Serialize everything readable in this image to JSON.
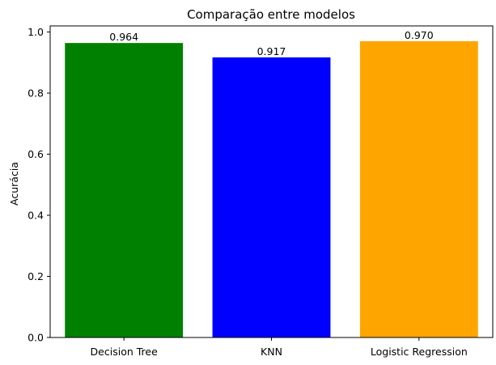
{
  "chart_data": {
    "type": "bar",
    "title": "Comparação entre modelos",
    "xlabel": "",
    "ylabel": "Acurácia",
    "categories": [
      "Decision Tree",
      "KNN",
      "Logistic Regression"
    ],
    "values": [
      0.964,
      0.917,
      0.97
    ],
    "value_labels": [
      "0.964",
      "0.917",
      "0.970"
    ],
    "colors": [
      "#008000",
      "#0000ff",
      "#ffa500"
    ],
    "ylim": [
      0,
      1.02
    ],
    "yticks": [
      0.0,
      0.2,
      0.4,
      0.6,
      0.8,
      1.0
    ],
    "ytick_labels": [
      "0.0",
      "0.2",
      "0.4",
      "0.6",
      "0.8",
      "1.0"
    ],
    "grid": false,
    "legend": "none"
  }
}
